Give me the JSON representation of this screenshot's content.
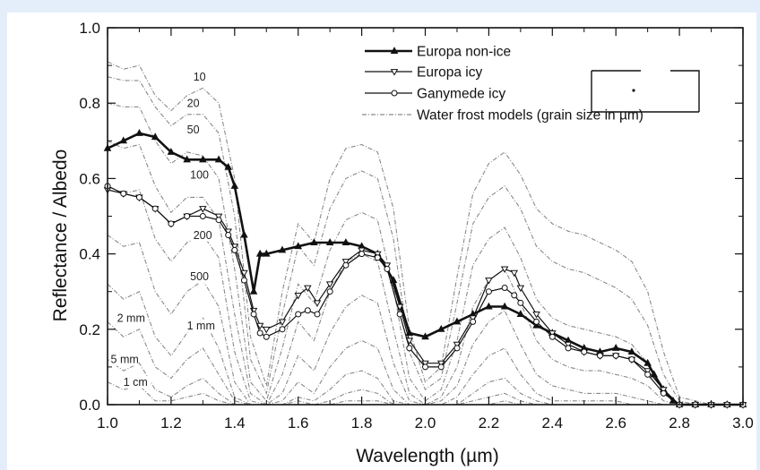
{
  "chart_data": {
    "type": "line",
    "title": "",
    "xlabel": "Wavelength (µm)",
    "ylabel": "Reflectance / Albedo",
    "xlim": [
      1.0,
      3.0
    ],
    "ylim": [
      0.0,
      1.0
    ],
    "x_ticks": [
      "1.0",
      "1.2",
      "1.4",
      "1.6",
      "1.8",
      "2.0",
      "2.2",
      "2.4",
      "2.6",
      "2.8",
      "3.0"
    ],
    "y_ticks": [
      "0.0",
      "0.2",
      "0.4",
      "0.6",
      "0.8",
      "1.0"
    ],
    "legend_position": "top-right",
    "legend": [
      {
        "label": "Europa non-ice",
        "marker": "triangle-up",
        "style": "thick"
      },
      {
        "label": "Europa icy",
        "marker": "triangle-down",
        "style": "thin"
      },
      {
        "label": "Ganymede icy",
        "marker": "circle",
        "style": "thin"
      },
      {
        "label": "Water frost models (grain size in µm)",
        "marker": "none",
        "style": "dotted"
      }
    ],
    "series": [
      {
        "name": "Europa non-ice",
        "x": [
          1.0,
          1.05,
          1.1,
          1.15,
          1.2,
          1.25,
          1.3,
          1.35,
          1.38,
          1.4,
          1.43,
          1.46,
          1.48,
          1.5,
          1.55,
          1.6,
          1.65,
          1.7,
          1.75,
          1.8,
          1.85,
          1.9,
          1.95,
          2.0,
          2.05,
          2.1,
          2.15,
          2.2,
          2.25,
          2.3,
          2.35,
          2.4,
          2.45,
          2.5,
          2.55,
          2.6,
          2.65,
          2.7,
          2.72,
          2.75,
          2.78,
          2.8,
          2.85,
          2.9,
          2.95,
          3.0
        ],
        "y": [
          0.68,
          0.7,
          0.72,
          0.71,
          0.67,
          0.65,
          0.65,
          0.65,
          0.63,
          0.58,
          0.45,
          0.3,
          0.4,
          0.4,
          0.41,
          0.42,
          0.43,
          0.43,
          0.43,
          0.42,
          0.4,
          0.33,
          0.19,
          0.18,
          0.2,
          0.22,
          0.24,
          0.26,
          0.26,
          0.24,
          0.21,
          0.19,
          0.17,
          0.15,
          0.14,
          0.15,
          0.14,
          0.11,
          0.08,
          0.04,
          0.01,
          0.0,
          0.0,
          0.0,
          0.0,
          0.0
        ]
      },
      {
        "name": "Europa icy",
        "x": [
          1.0,
          1.05,
          1.1,
          1.15,
          1.2,
          1.25,
          1.3,
          1.35,
          1.38,
          1.4,
          1.43,
          1.46,
          1.48,
          1.5,
          1.55,
          1.6,
          1.63,
          1.66,
          1.7,
          1.75,
          1.8,
          1.85,
          1.88,
          1.92,
          1.95,
          2.0,
          2.05,
          2.1,
          2.15,
          2.2,
          2.25,
          2.28,
          2.3,
          2.35,
          2.4,
          2.45,
          2.5,
          2.55,
          2.6,
          2.65,
          2.7,
          2.75,
          2.8,
          2.85,
          2.9,
          2.95,
          3.0
        ],
        "y": [
          0.57,
          0.56,
          0.55,
          0.52,
          0.48,
          0.5,
          0.52,
          0.5,
          0.46,
          0.42,
          0.35,
          0.25,
          0.21,
          0.2,
          0.22,
          0.29,
          0.31,
          0.27,
          0.32,
          0.38,
          0.41,
          0.4,
          0.37,
          0.26,
          0.17,
          0.11,
          0.11,
          0.16,
          0.23,
          0.33,
          0.36,
          0.35,
          0.31,
          0.24,
          0.19,
          0.16,
          0.14,
          0.13,
          0.13,
          0.12,
          0.09,
          0.04,
          0.0,
          0.0,
          0.0,
          0.0,
          0.0
        ]
      },
      {
        "name": "Ganymede icy",
        "x": [
          1.0,
          1.05,
          1.1,
          1.15,
          1.2,
          1.25,
          1.3,
          1.35,
          1.38,
          1.4,
          1.43,
          1.46,
          1.48,
          1.5,
          1.55,
          1.6,
          1.63,
          1.66,
          1.7,
          1.75,
          1.8,
          1.85,
          1.88,
          1.92,
          1.95,
          2.0,
          2.05,
          2.1,
          2.15,
          2.2,
          2.25,
          2.28,
          2.3,
          2.35,
          2.4,
          2.45,
          2.5,
          2.55,
          2.6,
          2.65,
          2.7,
          2.75,
          2.8,
          2.85,
          2.9,
          2.95,
          3.0
        ],
        "y": [
          0.58,
          0.56,
          0.55,
          0.52,
          0.48,
          0.5,
          0.5,
          0.49,
          0.45,
          0.41,
          0.33,
          0.24,
          0.19,
          0.18,
          0.2,
          0.24,
          0.25,
          0.24,
          0.3,
          0.37,
          0.4,
          0.39,
          0.36,
          0.24,
          0.15,
          0.1,
          0.1,
          0.15,
          0.22,
          0.3,
          0.31,
          0.29,
          0.27,
          0.22,
          0.18,
          0.15,
          0.14,
          0.13,
          0.13,
          0.12,
          0.08,
          0.03,
          0.0,
          0.0,
          0.0,
          0.0,
          0.0
        ]
      }
    ],
    "frost_models": {
      "x": [
        1.0,
        1.05,
        1.1,
        1.15,
        1.2,
        1.25,
        1.3,
        1.35,
        1.4,
        1.45,
        1.5,
        1.55,
        1.6,
        1.65,
        1.7,
        1.75,
        1.8,
        1.85,
        1.9,
        1.95,
        2.0,
        2.05,
        2.1,
        2.15,
        2.2,
        2.25,
        2.3,
        2.35,
        2.4,
        2.45,
        2.5,
        2.55,
        2.6,
        2.65,
        2.7,
        2.75,
        2.8,
        2.85,
        2.9,
        2.95,
        3.0
      ],
      "series": [
        {
          "name": "10",
          "y": [
            0.91,
            0.89,
            0.9,
            0.82,
            0.78,
            0.82,
            0.84,
            0.8,
            0.6,
            0.18,
            0.05,
            0.3,
            0.48,
            0.43,
            0.6,
            0.68,
            0.69,
            0.67,
            0.52,
            0.2,
            0.06,
            0.1,
            0.34,
            0.56,
            0.64,
            0.67,
            0.61,
            0.52,
            0.48,
            0.46,
            0.45,
            0.43,
            0.41,
            0.38,
            0.3,
            0.14,
            0.02,
            0.01,
            0.0,
            0.0,
            0.0
          ]
        },
        {
          "name": "20",
          "y": [
            0.87,
            0.86,
            0.86,
            0.79,
            0.74,
            0.77,
            0.77,
            0.72,
            0.5,
            0.12,
            0.03,
            0.24,
            0.42,
            0.37,
            0.52,
            0.6,
            0.62,
            0.6,
            0.44,
            0.14,
            0.04,
            0.07,
            0.27,
            0.48,
            0.55,
            0.58,
            0.52,
            0.42,
            0.38,
            0.36,
            0.35,
            0.33,
            0.31,
            0.28,
            0.21,
            0.08,
            0.01,
            0.0,
            0.0,
            0.0,
            0.0
          ]
        },
        {
          "name": "50",
          "y": [
            0.8,
            0.79,
            0.79,
            0.7,
            0.64,
            0.67,
            0.66,
            0.6,
            0.36,
            0.06,
            0.01,
            0.15,
            0.32,
            0.27,
            0.41,
            0.49,
            0.51,
            0.49,
            0.31,
            0.07,
            0.01,
            0.04,
            0.17,
            0.37,
            0.44,
            0.47,
            0.39,
            0.28,
            0.23,
            0.21,
            0.2,
            0.19,
            0.18,
            0.16,
            0.11,
            0.03,
            0.0,
            0.0,
            0.0,
            0.0,
            0.0
          ]
        },
        {
          "name": "100",
          "y": [
            0.7,
            0.68,
            0.69,
            0.58,
            0.51,
            0.55,
            0.55,
            0.49,
            0.24,
            0.03,
            0.0,
            0.08,
            0.22,
            0.17,
            0.3,
            0.38,
            0.4,
            0.38,
            0.2,
            0.03,
            0.0,
            0.02,
            0.1,
            0.26,
            0.33,
            0.36,
            0.27,
            0.17,
            0.12,
            0.1,
            0.09,
            0.09,
            0.08,
            0.07,
            0.05,
            0.01,
            0.0,
            0.0,
            0.0,
            0.0,
            0.0
          ]
        },
        {
          "name": "200",
          "y": [
            0.58,
            0.56,
            0.57,
            0.44,
            0.38,
            0.43,
            0.45,
            0.39,
            0.14,
            0.01,
            0.0,
            0.03,
            0.13,
            0.09,
            0.19,
            0.26,
            0.29,
            0.27,
            0.11,
            0.01,
            0.0,
            0.01,
            0.05,
            0.16,
            0.22,
            0.25,
            0.16,
            0.08,
            0.05,
            0.04,
            0.03,
            0.03,
            0.03,
            0.02,
            0.01,
            0.0,
            0.0,
            0.0,
            0.0,
            0.0,
            0.0
          ]
        },
        {
          "name": "500",
          "y": [
            0.45,
            0.42,
            0.43,
            0.3,
            0.24,
            0.3,
            0.33,
            0.26,
            0.06,
            0.0,
            0.0,
            0.01,
            0.06,
            0.03,
            0.1,
            0.15,
            0.17,
            0.15,
            0.04,
            0.0,
            0.0,
            0.0,
            0.02,
            0.08,
            0.13,
            0.15,
            0.08,
            0.03,
            0.01,
            0.01,
            0.01,
            0.01,
            0.01,
            0.0,
            0.0,
            0.0,
            0.0,
            0.0,
            0.0,
            0.0,
            0.0
          ]
        },
        {
          "name": "1 mm",
          "y": [
            0.32,
            0.28,
            0.3,
            0.18,
            0.13,
            0.19,
            0.23,
            0.15,
            0.02,
            0.0,
            0.0,
            0.0,
            0.02,
            0.01,
            0.04,
            0.08,
            0.09,
            0.07,
            0.01,
            0.0,
            0.0,
            0.0,
            0.0,
            0.03,
            0.06,
            0.07,
            0.03,
            0.01,
            0.0,
            0.0,
            0.0,
            0.0,
            0.0,
            0.0,
            0.0,
            0.0,
            0.0,
            0.0,
            0.0,
            0.0,
            0.0
          ]
        },
        {
          "name": "2 mm",
          "y": [
            0.22,
            0.18,
            0.2,
            0.1,
            0.07,
            0.12,
            0.15,
            0.08,
            0.01,
            0.0,
            0.0,
            0.0,
            0.01,
            0.0,
            0.01,
            0.03,
            0.04,
            0.03,
            0.0,
            0.0,
            0.0,
            0.0,
            0.0,
            0.01,
            0.02,
            0.03,
            0.01,
            0.0,
            0.0,
            0.0,
            0.0,
            0.0,
            0.0,
            0.0,
            0.0,
            0.0,
            0.0,
            0.0,
            0.0,
            0.0,
            0.0
          ]
        },
        {
          "name": "5 mm",
          "y": [
            0.12,
            0.09,
            0.11,
            0.04,
            0.02,
            0.05,
            0.07,
            0.03,
            0.0,
            0.0,
            0.0,
            0.0,
            0.0,
            0.0,
            0.0,
            0.01,
            0.01,
            0.01,
            0.0,
            0.0,
            0.0,
            0.0,
            0.0,
            0.0,
            0.0,
            0.01,
            0.0,
            0.0,
            0.0,
            0.0,
            0.0,
            0.0,
            0.0,
            0.0,
            0.0,
            0.0,
            0.0,
            0.0,
            0.0,
            0.0,
            0.0
          ]
        },
        {
          "name": "1 cm",
          "y": [
            0.06,
            0.04,
            0.05,
            0.01,
            0.01,
            0.02,
            0.03,
            0.01,
            0.0,
            0.0,
            0.0,
            0.0,
            0.0,
            0.0,
            0.0,
            0.0,
            0.0,
            0.0,
            0.0,
            0.0,
            0.0,
            0.0,
            0.0,
            0.0,
            0.0,
            0.0,
            0.0,
            0.0,
            0.0,
            0.0,
            0.0,
            0.0,
            0.0,
            0.0,
            0.0,
            0.0,
            0.0,
            0.0,
            0.0,
            0.0,
            0.0
          ]
        }
      ],
      "curve_labels": [
        {
          "text": "10",
          "x": 1.27,
          "y": 0.86
        },
        {
          "text": "20",
          "x": 1.25,
          "y": 0.79
        },
        {
          "text": "50",
          "x": 1.25,
          "y": 0.72
        },
        {
          "text": "100",
          "x": 1.26,
          "y": 0.6
        },
        {
          "text": "200",
          "x": 1.27,
          "y": 0.44
        },
        {
          "text": "500",
          "x": 1.26,
          "y": 0.33
        },
        {
          "text": "2 mm",
          "x": 1.03,
          "y": 0.22
        },
        {
          "text": "1 mm",
          "x": 1.25,
          "y": 0.2
        },
        {
          "text": "5 mm",
          "x": 1.01,
          "y": 0.11
        },
        {
          "text": "1 cm",
          "x": 1.05,
          "y": 0.05
        }
      ]
    },
    "colors": {
      "background": "#e4eefb",
      "panel": "#ffffff",
      "axis": "#111111",
      "data_series": "#111111",
      "frost_models": "#8a8a8a"
    }
  }
}
